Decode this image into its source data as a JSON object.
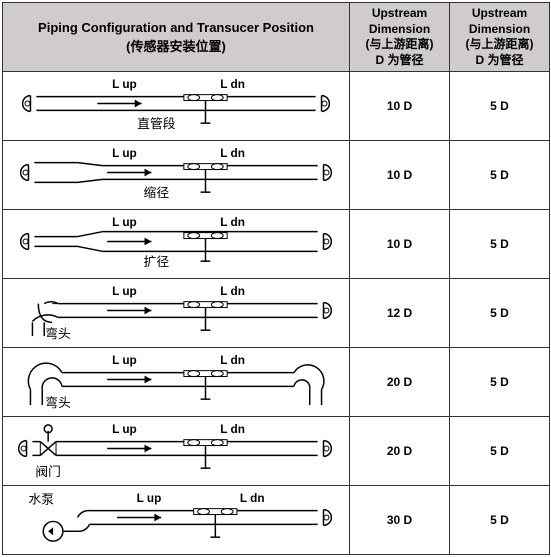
{
  "header": {
    "config_title_en": "Piping Configuration and Transucer Position",
    "config_title_zh": "(传感器安装位置)",
    "upstream_label": "Upstream",
    "dimension_label": "Dimension",
    "distance_zh": "(与上游距离)",
    "d_label": "D 为管径"
  },
  "labels": {
    "l_up": "L up",
    "l_dn": "L dn"
  },
  "rows": [
    {
      "name_zh": "直管段",
      "type": "straight",
      "upstream": "10 D",
      "downstream": "5 D"
    },
    {
      "name_zh": "缩径",
      "type": "reducer",
      "upstream": "10 D",
      "downstream": "5 D"
    },
    {
      "name_zh": "扩径",
      "type": "expander",
      "upstream": "10 D",
      "downstream": "5 D"
    },
    {
      "name_zh": "弯头",
      "type": "elbow",
      "upstream": "12 D",
      "downstream": "5 D"
    },
    {
      "name_zh": "弯头",
      "type": "elbow2",
      "upstream": "20 D",
      "downstream": "5 D"
    },
    {
      "name_zh": "阀门",
      "type": "valve",
      "upstream": "20 D",
      "downstream": "5 D"
    },
    {
      "name_zh": "水泵",
      "type": "pump",
      "upstream": "30 D",
      "downstream": "5 D"
    }
  ],
  "style": {
    "stroke": "#000000",
    "stroke_width": 1.5,
    "text_color": "#000000",
    "label_fontsize": 12,
    "caption_fontsize": 13
  }
}
